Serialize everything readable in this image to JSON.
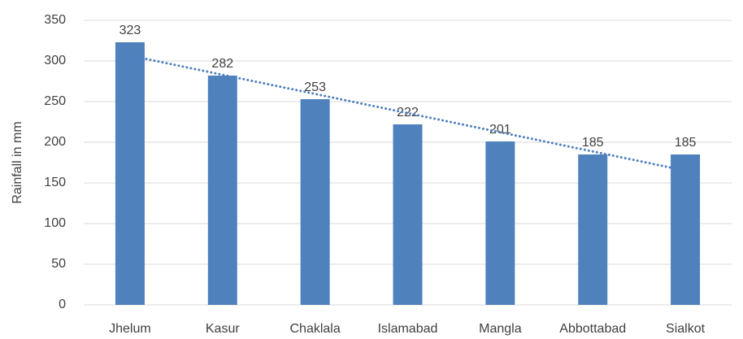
{
  "chart_data": {
    "type": "bar",
    "y_label": "Rainfall in mm",
    "categories": [
      "Jhelum",
      "Kasur",
      "Chaklala",
      "Islamabad",
      "Mangla",
      "Abbottabad",
      "Sialkot"
    ],
    "values": [
      323,
      282,
      253,
      222,
      201,
      185,
      185
    ],
    "color": "#4f81bd",
    "ylim": [
      0,
      350
    ],
    "yticks": [
      0,
      50,
      100,
      150,
      200,
      250,
      300,
      350
    ],
    "grid": true,
    "data_labels": true,
    "trendline": {
      "type": "linear",
      "color": "#4f81bd",
      "style": "dotted"
    }
  }
}
